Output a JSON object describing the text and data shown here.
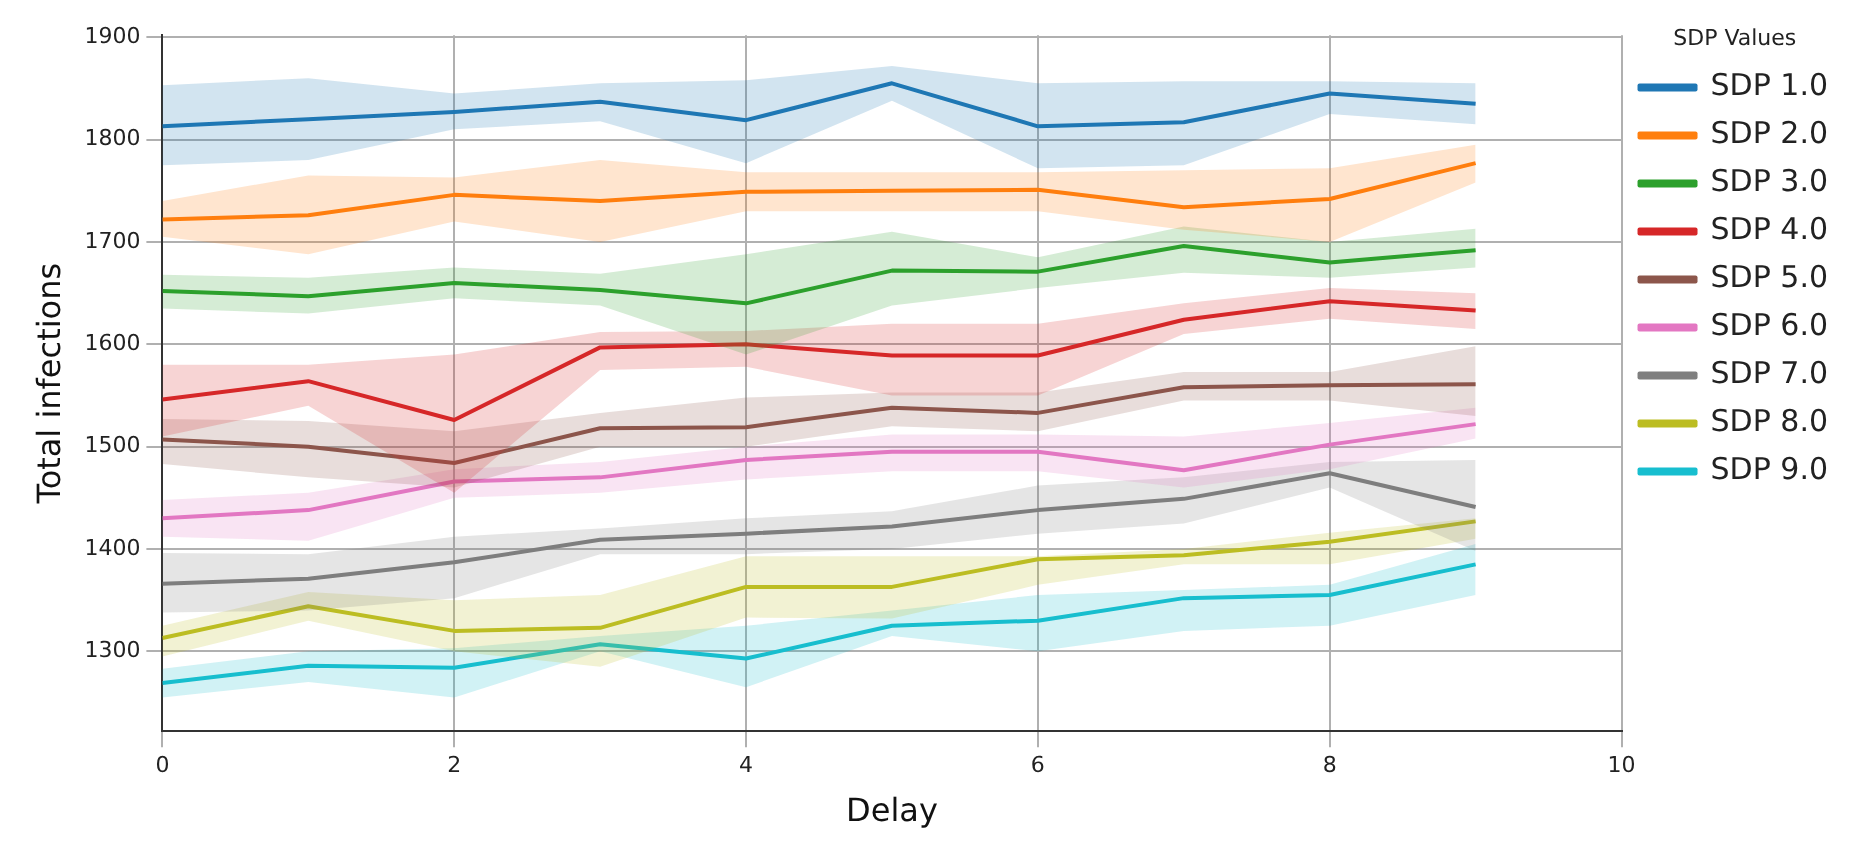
{
  "chart_data": {
    "type": "line",
    "xlabel": "Delay",
    "ylabel": "Total infections",
    "legend_title": "SDP Values",
    "legend": "right",
    "grid": true,
    "marker": "none",
    "line_style": "solid",
    "xlim": [
      0,
      10
    ],
    "xticks": [
      0,
      2,
      4,
      6,
      8,
      10
    ],
    "ylim": [
      1222,
      1902
    ],
    "yticks": [
      1300,
      1400,
      1500,
      1600,
      1700,
      1800,
      1900
    ],
    "x": [
      0,
      1,
      2,
      3,
      4,
      5,
      6,
      7,
      8,
      9
    ],
    "series": [
      {
        "name": "SDP 1.0",
        "color": "#1f77b4",
        "values": [
          1813,
          1820,
          1827,
          1837,
          1819,
          1855,
          1813,
          1817,
          1845,
          1835
        ],
        "lower": [
          1775,
          1780,
          1810,
          1818,
          1777,
          1838,
          1772,
          1775,
          1825,
          1815
        ],
        "upper": [
          1853,
          1860,
          1845,
          1855,
          1858,
          1872,
          1855,
          1857,
          1857,
          1855
        ]
      },
      {
        "name": "SDP 2.0",
        "color": "#ff7f0e",
        "values": [
          1722,
          1726,
          1746,
          1740,
          1749,
          1750,
          1751,
          1734,
          1742,
          1777
        ],
        "lower": [
          1705,
          1688,
          1720,
          1700,
          1730,
          1730,
          1730,
          1712,
          1700,
          1758
        ],
        "upper": [
          1740,
          1765,
          1763,
          1780,
          1768,
          1768,
          1768,
          1770,
          1772,
          1795
        ]
      },
      {
        "name": "SDP 3.0",
        "color": "#2ca02c",
        "values": [
          1652,
          1647,
          1660,
          1653,
          1640,
          1672,
          1671,
          1696,
          1680,
          1692
        ],
        "lower": [
          1635,
          1630,
          1645,
          1638,
          1590,
          1638,
          1655,
          1670,
          1665,
          1675
        ],
        "upper": [
          1668,
          1665,
          1675,
          1669,
          1688,
          1710,
          1685,
          1715,
          1700,
          1713
        ]
      },
      {
        "name": "SDP 4.0",
        "color": "#d62728",
        "values": [
          1546,
          1564,
          1526,
          1597,
          1600,
          1589,
          1589,
          1624,
          1642,
          1633
        ],
        "lower": [
          1510,
          1540,
          1455,
          1575,
          1578,
          1550,
          1550,
          1610,
          1625,
          1615
        ],
        "upper": [
          1580,
          1580,
          1590,
          1612,
          1613,
          1620,
          1620,
          1640,
          1655,
          1650
        ]
      },
      {
        "name": "SDP 5.0",
        "color": "#8c564b",
        "values": [
          1507,
          1500,
          1484,
          1518,
          1519,
          1538,
          1533,
          1558,
          1560,
          1561
        ],
        "lower": [
          1483,
          1470,
          1460,
          1500,
          1500,
          1520,
          1515,
          1545,
          1545,
          1530
        ],
        "upper": [
          1527,
          1525,
          1515,
          1533,
          1548,
          1553,
          1553,
          1573,
          1573,
          1598
        ]
      },
      {
        "name": "SDP 6.0",
        "color": "#e377c2",
        "values": [
          1430,
          1438,
          1466,
          1470,
          1487,
          1495,
          1495,
          1477,
          1502,
          1522
        ],
        "lower": [
          1412,
          1408,
          1450,
          1455,
          1468,
          1476,
          1476,
          1460,
          1478,
          1508
        ],
        "upper": [
          1448,
          1455,
          1478,
          1485,
          1500,
          1512,
          1512,
          1510,
          1523,
          1538
        ]
      },
      {
        "name": "SDP 7.0",
        "color": "#7f7f7f",
        "values": [
          1366,
          1371,
          1387,
          1409,
          1415,
          1422,
          1438,
          1449,
          1474,
          1441
        ],
        "lower": [
          1338,
          1340,
          1352,
          1395,
          1395,
          1400,
          1415,
          1425,
          1460,
          1398
        ],
        "upper": [
          1396,
          1395,
          1412,
          1420,
          1430,
          1437,
          1462,
          1470,
          1485,
          1487
        ]
      },
      {
        "name": "SDP 8.0",
        "color": "#bcbd22",
        "values": [
          1313,
          1344,
          1320,
          1323,
          1363,
          1363,
          1390,
          1394,
          1407,
          1427
        ],
        "lower": [
          1295,
          1330,
          1300,
          1285,
          1333,
          1332,
          1365,
          1385,
          1385,
          1410
        ],
        "upper": [
          1325,
          1358,
          1350,
          1355,
          1393,
          1393,
          1393,
          1400,
          1416,
          1430
        ]
      },
      {
        "name": "SDP 9.0",
        "color": "#17becf",
        "values": [
          1269,
          1286,
          1284,
          1307,
          1293,
          1325,
          1330,
          1352,
          1355,
          1385
        ],
        "lower": [
          1255,
          1270,
          1255,
          1300,
          1265,
          1315,
          1300,
          1320,
          1325,
          1355
        ],
        "upper": [
          1283,
          1300,
          1303,
          1315,
          1325,
          1340,
          1355,
          1360,
          1365,
          1405
        ]
      }
    ]
  }
}
